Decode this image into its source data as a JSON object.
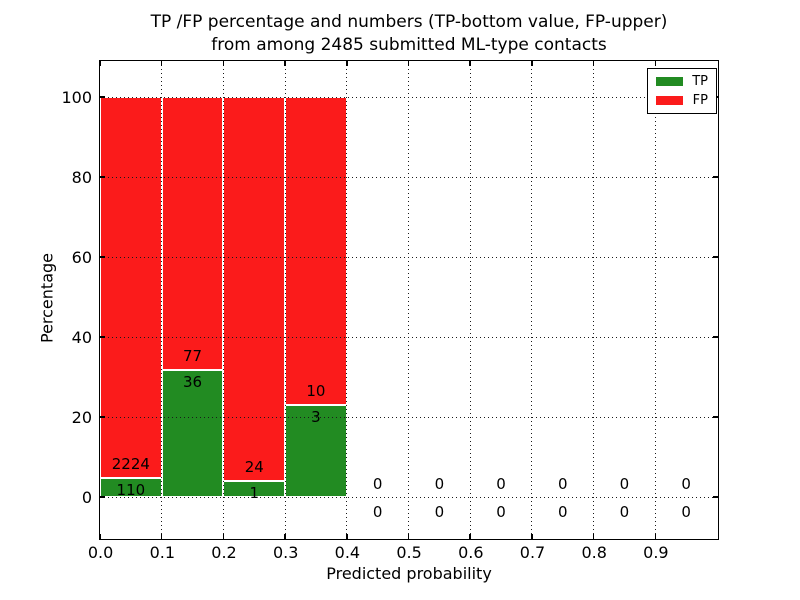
{
  "title": {
    "line1": "TP /FP percentage and numbers (TP-bottom value, FP-upper)",
    "line2": "from among 2485 submitted ML-type contacts"
  },
  "axes": {
    "xlabel": "Predicted probability",
    "ylabel": "Percentage",
    "xtick_labels": [
      "0.0",
      "0.1",
      "0.2",
      "0.3",
      "0.4",
      "0.5",
      "0.6",
      "0.7",
      "0.8",
      "0.9"
    ],
    "xtick_values": [
      0.0,
      0.1,
      0.2,
      0.3,
      0.4,
      0.5,
      0.6,
      0.7,
      0.8,
      0.9
    ],
    "ytick_labels": [
      "0",
      "20",
      "40",
      "60",
      "80",
      "100"
    ],
    "ytick_values": [
      0,
      20,
      40,
      60,
      80,
      100
    ],
    "grid": "dotted"
  },
  "legend": {
    "position": "upper-right",
    "items": [
      {
        "label": "TP",
        "color": "#228b22"
      },
      {
        "label": "FP",
        "color": "#fb1b1b"
      }
    ]
  },
  "colors": {
    "tp": "#228b22",
    "fp": "#fb1b1b",
    "bar_edge": "#ffffff",
    "grid": "#1a1a1a",
    "spine": "#000000",
    "background": "#ffffff"
  },
  "chart_data": {
    "type": "bar",
    "stacked": true,
    "title": "TP /FP percentage and numbers (TP-bottom value, FP-upper) from among 2485 submitted ML-type contacts",
    "xlabel": "Predicted probability",
    "ylabel": "Percentage",
    "total_contacts": 2485,
    "bin_width": 0.1,
    "bin_left_edges": [
      0.0,
      0.1,
      0.2,
      0.3,
      0.4,
      0.5,
      0.6,
      0.7,
      0.8,
      0.9
    ],
    "categories": [
      "0.0-0.1",
      "0.1-0.2",
      "0.2-0.3",
      "0.3-0.4",
      "0.4-0.5",
      "0.5-0.6",
      "0.6-0.7",
      "0.7-0.8",
      "0.8-0.9",
      "0.9-1.0"
    ],
    "series": [
      {
        "name": "TP",
        "color": "#228b22",
        "counts": [
          110,
          36,
          1,
          3,
          0,
          0,
          0,
          0,
          0,
          0
        ],
        "percent": [
          4.71,
          31.86,
          4.0,
          23.08,
          0,
          0,
          0,
          0,
          0,
          0
        ]
      },
      {
        "name": "FP",
        "color": "#fb1b1b",
        "counts": [
          2224,
          77,
          24,
          10,
          0,
          0,
          0,
          0,
          0,
          0
        ],
        "percent": [
          95.29,
          68.14,
          96.0,
          76.92,
          0,
          0,
          0,
          0,
          0,
          0
        ]
      }
    ],
    "xlim": [
      0.0,
      1.0
    ],
    "ylim": [
      -10.25,
      109.75
    ],
    "grid": true,
    "legend_position": "upper-right"
  }
}
